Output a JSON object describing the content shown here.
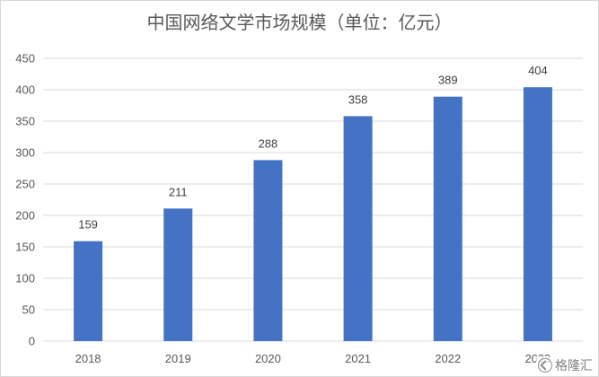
{
  "chart_data": {
    "type": "bar",
    "title": "中国网络文学市场规模（单位：亿元）",
    "categories": [
      "2018",
      "2019",
      "2020",
      "2021",
      "2022",
      "2023"
    ],
    "values": [
      159,
      211,
      288,
      358,
      389,
      404
    ],
    "data_labels": [
      "159",
      "211",
      "288",
      "358",
      "389",
      "404"
    ],
    "y_ticks": [
      "0",
      "50",
      "100",
      "150",
      "200",
      "250",
      "300",
      "350",
      "400",
      "450"
    ],
    "ylim": [
      0,
      450
    ],
    "xlabel": "",
    "ylabel": "",
    "grid": true,
    "legend": "none",
    "bar_color": "#4472c4",
    "grid_color": "#d9d9d9"
  },
  "watermark": {
    "text": "格隆汇",
    "icon": "gelonghui-logo-icon"
  }
}
